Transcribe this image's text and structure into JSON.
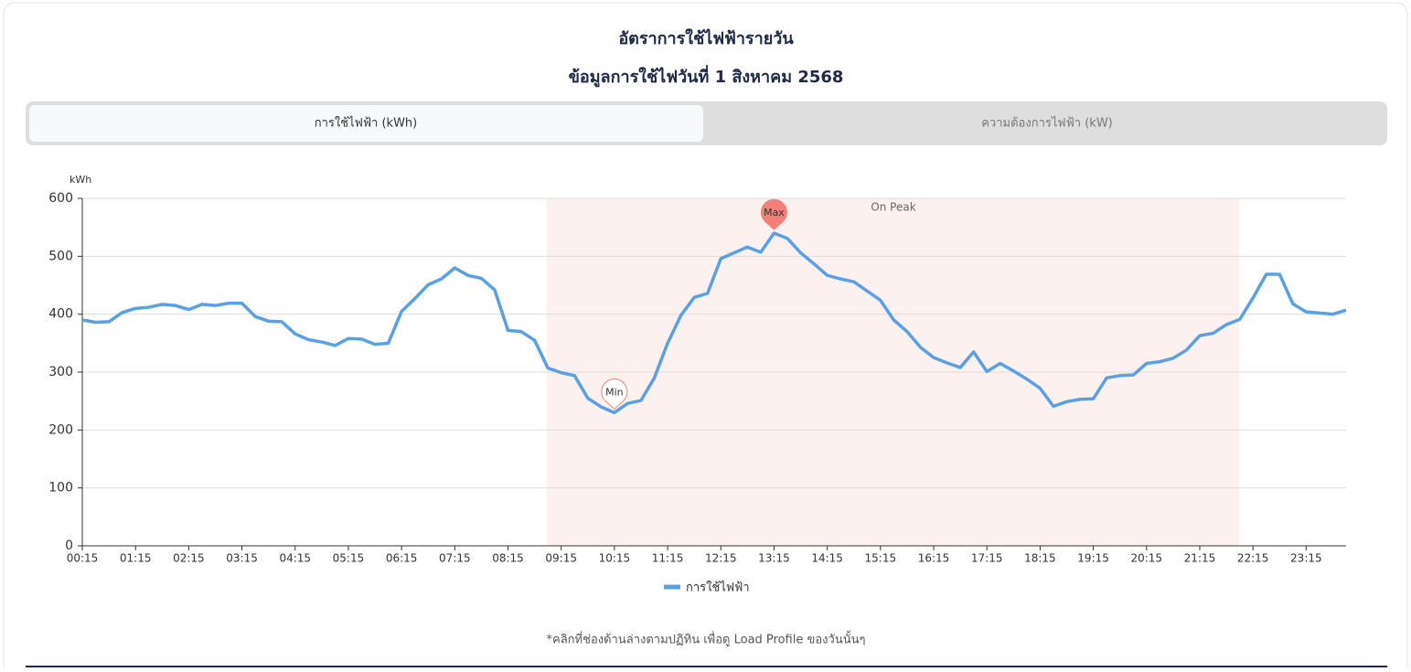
{
  "header": {
    "title": "อัตราการใช้ไฟฟ้ารายวัน",
    "subtitle": "ข้อมูลการใช้ไฟวันที่ 1 สิงหาคม 2568"
  },
  "tabs": [
    "การใช้ไฟฟ้า (kWh)",
    "ความต้องการไฟฟ้า (kW)"
  ],
  "chart_data": {
    "type": "line",
    "y_label": "kWh",
    "categories": [
      "00:15",
      null,
      null,
      null,
      "01:15",
      null,
      null,
      null,
      "02:15",
      null,
      null,
      null,
      "03:15",
      null,
      null,
      null,
      "04:15",
      null,
      null,
      null,
      "05:15",
      null,
      null,
      null,
      "06:15",
      null,
      null,
      null,
      "07:15",
      null,
      null,
      null,
      "08:15",
      null,
      null,
      null,
      "09:15",
      null,
      null,
      null,
      "10:15",
      null,
      null,
      null,
      "11:15",
      null,
      null,
      null,
      "12:15",
      null,
      null,
      null,
      "13:15",
      null,
      null,
      null,
      "14:15",
      null,
      null,
      null,
      "15:15",
      null,
      null,
      null,
      "16:15",
      null,
      null,
      null,
      "17:15",
      null,
      null,
      null,
      "18:15",
      null,
      null,
      null,
      "19:15",
      null,
      null,
      null,
      "20:15",
      null,
      null,
      null,
      "21:15",
      null,
      null,
      null,
      "22:15",
      null,
      null,
      null,
      "23:15",
      null,
      null,
      null
    ],
    "series": [
      {
        "name": "การใช้ไฟฟ้า",
        "color": "#5aa0e6",
        "values": [
          390,
          386,
          387,
          403,
          410,
          412,
          417,
          415,
          408,
          417,
          415,
          419,
          419,
          396,
          388,
          387,
          366,
          356,
          352,
          346,
          358,
          357,
          348,
          350,
          405,
          427,
          451,
          461,
          480,
          467,
          462,
          442,
          372,
          370,
          355,
          307,
          299,
          294,
          255,
          240,
          230,
          246,
          251,
          290,
          350,
          398,
          429,
          436,
          496,
          506,
          516,
          507,
          540,
          531,
          506,
          487,
          467,
          461,
          456,
          440,
          424,
          390,
          370,
          343,
          325,
          316,
          308,
          335,
          301,
          315,
          302,
          288,
          272,
          241,
          249,
          253,
          254,
          290,
          294,
          295,
          315,
          318,
          324,
          338,
          363,
          367,
          382,
          391,
          428,
          469,
          469,
          418,
          404,
          402,
          400,
          407
        ]
      }
    ],
    "ylim": [
      0,
      600
    ],
    "yticks": [
      0,
      100,
      200,
      300,
      400,
      500,
      600
    ],
    "grid": true,
    "annotations": {
      "max": "Max",
      "min": "Min",
      "band": "On Peak"
    }
  },
  "footnote": "*คลิกที่ช่องด้านล่างตามปฏิทิน เพื่อดู Load Profile ของวันนั้นๆ"
}
